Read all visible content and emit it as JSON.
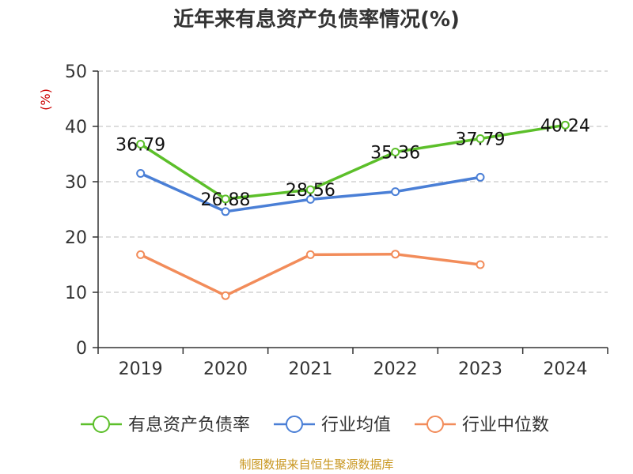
{
  "chart_data": {
    "type": "line",
    "title": "近年来有息资产负债率情况(%)",
    "ylabel": "(%)",
    "xlabel": "",
    "categories": [
      "2019",
      "2020",
      "2021",
      "2022",
      "2023",
      "2024"
    ],
    "ylim": [
      0,
      50
    ],
    "yticks": [
      0,
      10,
      20,
      30,
      40,
      50
    ],
    "grid": true,
    "legend_position": "bottom",
    "series": [
      {
        "name": "有息资产负债率",
        "color": "#5cbf2a",
        "values": [
          36.79,
          26.88,
          28.56,
          35.36,
          37.79,
          40.24
        ],
        "labels": [
          "36.79",
          "26.88",
          "28.56",
          "35.36",
          "37.79",
          "40.24"
        ]
      },
      {
        "name": "行业均值",
        "color": "#4a7fd6",
        "values": [
          31.5,
          24.6,
          26.8,
          28.2,
          30.8,
          null
        ]
      },
      {
        "name": "行业中位数",
        "color": "#f28c5a",
        "values": [
          16.8,
          9.4,
          16.8,
          16.9,
          15.0,
          null
        ]
      }
    ]
  },
  "source": "制图数据来自恒生聚源数据库"
}
